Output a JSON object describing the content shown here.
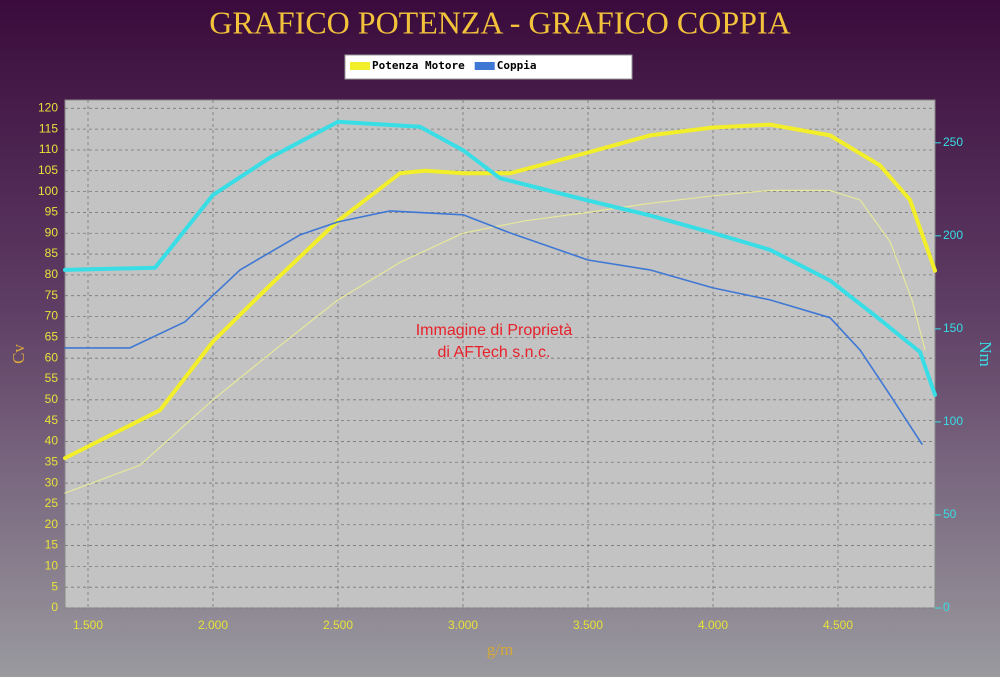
{
  "chart_data": {
    "type": "line",
    "title": "GRAFICO POTENZA - GRAFICO COPPIA",
    "x_label": "g/m",
    "y_label": "Cv",
    "y2_label": "Nm",
    "annotation": [
      "Immagine di Proprietà",
      "di AFTech s.n.c."
    ],
    "xlim": [
      1408,
      4888
    ],
    "xticks": [
      {
        "value": 1500,
        "label": "1.500"
      },
      {
        "value": 2000,
        "label": "2.000"
      },
      {
        "value": 2500,
        "label": "2.500"
      },
      {
        "value": 3000,
        "label": "3.000"
      },
      {
        "value": 3500,
        "label": "3.500"
      },
      {
        "value": 4000,
        "label": "4.000"
      },
      {
        "value": 4500,
        "label": "4.500"
      }
    ],
    "ylim": [
      0,
      122
    ],
    "yticks": [
      0,
      5,
      10,
      15,
      20,
      25,
      30,
      35,
      40,
      45,
      50,
      55,
      60,
      65,
      70,
      75,
      80,
      85,
      90,
      95,
      100,
      105,
      110,
      115,
      120
    ],
    "y2lim": [
      0,
      273
    ],
    "y2ticks": [
      0,
      50,
      100,
      150,
      200,
      250
    ],
    "grid": true,
    "series": [
      {
        "name": "Potenza Motore",
        "color": "#f2ee2a",
        "width": 4,
        "x": [
          1408,
          1788,
          2000,
          2228,
          2500,
          2748,
          2848,
          3000,
          3188,
          3500,
          3748,
          4000,
          4228,
          4468,
          4668,
          4788,
          4888
        ],
        "values": [
          36,
          47.5,
          64,
          77.5,
          93,
          104.4,
          105,
          104.4,
          104.4,
          109.4,
          113.5,
          115.4,
          116.1,
          113.5,
          106.3,
          98,
          81
        ]
      },
      {
        "color": "#e6e89a",
        "width": 1.2,
        "x": [
          1408,
          1708,
          2000,
          2268,
          2500,
          2748,
          3000,
          3248,
          3500,
          3748,
          4000,
          4228,
          4468,
          4588,
          4708,
          4796,
          4848
        ],
        "values": [
          27.6,
          34.3,
          50,
          63,
          74,
          83,
          90,
          93,
          95,
          97.2,
          99,
          100.3,
          100.3,
          98,
          88,
          74,
          62
        ]
      },
      {
        "color": "#38dde6",
        "width": 4,
        "axis": "y2",
        "x": [
          1408,
          1768,
          2000,
          2228,
          2500,
          2828,
          3000,
          3148,
          3500,
          3748,
          4000,
          4228,
          4468,
          4668,
          4828,
          4888
        ],
        "values": [
          181.7,
          182.8,
          222,
          242,
          261.3,
          258.6,
          246,
          231,
          219,
          211,
          201.6,
          192.5,
          176,
          155,
          137.6,
          114.5
        ]
      },
      {
        "name": "Coppia",
        "color": "#3f78d4",
        "width": 1.6,
        "axis": "y2",
        "x": [
          1408,
          1668,
          1888,
          2108,
          2348,
          2500,
          2708,
          3000,
          3188,
          3500,
          3748,
          4000,
          4228,
          4468,
          4588,
          4708,
          4836
        ],
        "values": [
          139.8,
          139.8,
          153.8,
          181.7,
          200.5,
          207.5,
          213.4,
          211.3,
          201.6,
          187,
          181.7,
          172,
          165.6,
          156,
          138.7,
          114.5,
          88
        ]
      }
    ]
  }
}
